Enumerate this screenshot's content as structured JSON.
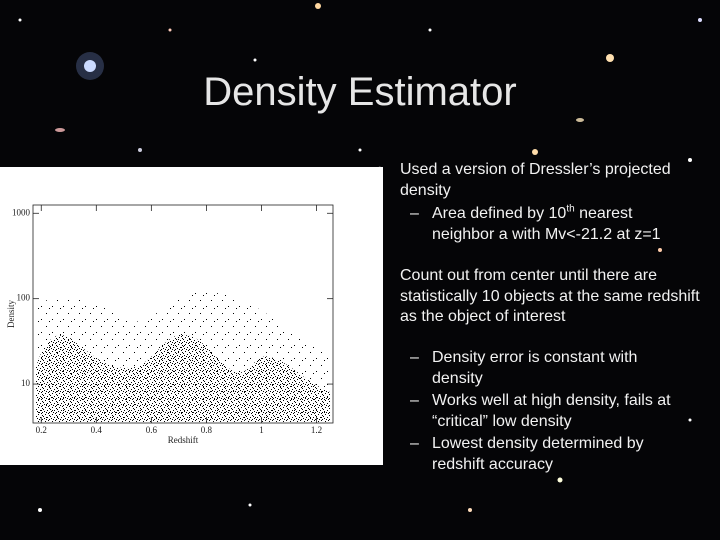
{
  "title": "Density Estimator",
  "bullets": [
    {
      "text": "Used a version of Dressler’s projected density",
      "sub": [
        {
          "parts": [
            "Area defined by 10",
            "th",
            " nearest neighbor a with Mv<-21.2 at z=1"
          ]
        }
      ]
    },
    {
      "text": "Count out from center until there are statistically 10 objects at the same redshift as the object of interest",
      "sub": [
        {
          "text": "Density error is constant with density"
        },
        {
          "text": "Works well at high density, fails at “critical” low density"
        },
        {
          "text": "Lowest density determined by redshift accuracy"
        }
      ]
    }
  ],
  "chart_data": {
    "type": "scatter",
    "xlabel": "Redshift",
    "ylabel": "Density",
    "xlim": [
      0.17,
      1.26
    ],
    "xticks": [
      0.2,
      0.4,
      0.6,
      0.8,
      1,
      1.2
    ],
    "ylim": [
      3.5,
      1250
    ],
    "yticks": [
      10,
      100,
      1000
    ],
    "ylog": true
  }
}
